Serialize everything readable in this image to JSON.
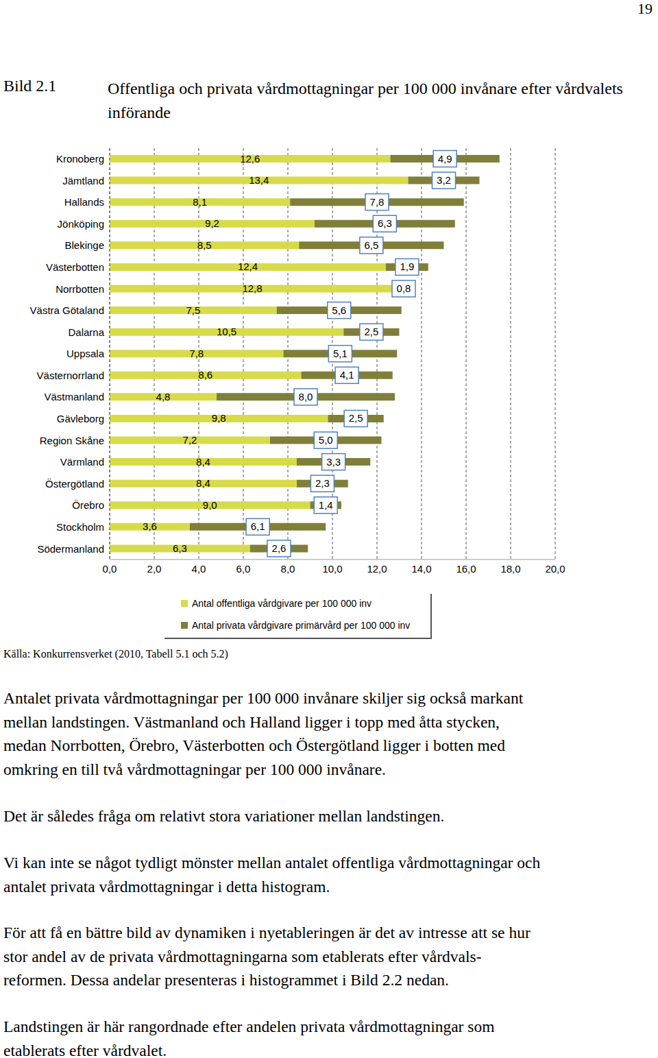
{
  "page_number": "19",
  "figure_label": "Bild 2.1",
  "chart_data": {
    "type": "bar",
    "orientation": "horizontal",
    "stacked": true,
    "title": "Offentliga och privata vårdmottagningar per 100 000 invånare efter vårdvalets införande",
    "categories": [
      "Kronoberg",
      "Jämtland",
      "Hallands",
      "Jönköping",
      "Blekinge",
      "Västerbotten",
      "Norrbotten",
      "Västra Götaland",
      "Dalarna",
      "Uppsala",
      "Västernorrland",
      "Västmanland",
      "Gävleborg",
      "Region Skåne",
      "Värmland",
      "Östergötland",
      "Örebro",
      "Stockholm",
      "Södermanland"
    ],
    "series": [
      {
        "name": "Antal offentliga vårdgivare per 100 000 inv",
        "color": "#d7db4a",
        "values": [
          12.6,
          13.4,
          8.1,
          9.2,
          8.5,
          12.4,
          12.8,
          7.5,
          10.5,
          7.8,
          8.6,
          4.8,
          9.8,
          7.2,
          8.4,
          8.4,
          9.0,
          3.6,
          6.3
        ],
        "value_labels": [
          "12,6",
          "13,4",
          "8,1",
          "9,2",
          "8,5",
          "12,4",
          "12,8",
          "7,5",
          "10,5",
          "7,8",
          "8,6",
          "4,8",
          "9,8",
          "7,2",
          "8,4",
          "8,4",
          "9,0",
          "3,6",
          "6,3"
        ]
      },
      {
        "name": "Antal privata vårdgivare primärvård per 100 000 inv",
        "color": "#7f7f3a",
        "values": [
          4.9,
          3.2,
          7.8,
          6.3,
          6.5,
          1.9,
          0.8,
          5.6,
          2.5,
          5.1,
          4.1,
          8.0,
          2.5,
          5.0,
          3.3,
          2.3,
          1.4,
          6.1,
          2.6
        ],
        "value_labels": [
          "4,9",
          "3,2",
          "7,8",
          "6,3",
          "6,5",
          "1,9",
          "0,8",
          "5,6",
          "2,5",
          "5,1",
          "4,1",
          "8,0",
          "2,5",
          "5,0",
          "3,3",
          "2,3",
          "1,4",
          "6,1",
          "2,6"
        ]
      }
    ],
    "xlim": [
      0,
      20
    ],
    "xticks": [
      {
        "value": 0,
        "label": "0,0"
      },
      {
        "value": 2,
        "label": "2,0"
      },
      {
        "value": 4,
        "label": "4,0"
      },
      {
        "value": 6,
        "label": "6,0"
      },
      {
        "value": 8,
        "label": "8,0"
      },
      {
        "value": 10,
        "label": "10,0"
      },
      {
        "value": 12,
        "label": "12,0"
      },
      {
        "value": 14,
        "label": "14,0"
      },
      {
        "value": 16,
        "label": "16,0"
      },
      {
        "value": 18,
        "label": "18,0"
      },
      {
        "value": 20,
        "label": "20,0"
      }
    ],
    "grid": true,
    "data_labels": true,
    "legend": "bottom"
  },
  "source": "Källa: Konkurrensverket (2010, Tabell 5.1 och 5.2)",
  "paragraphs": [
    [
      "Antalet privata vårdmottagningar per 100 000 invånare skiljer sig också markant",
      "mellan landstingen. Västmanland och Halland ligger i topp med åtta stycken,",
      "medan Norrbotten, Örebro, Västerbotten och Östergötland ligger i botten med",
      "omkring en till två vårdmottagningar per 100 000 invånare."
    ],
    [
      "Det är således fråga om relativt stora variationer mellan landstingen."
    ],
    [
      "Vi kan inte se något tydligt mönster mellan antalet offentliga vårdmottagningar och",
      "antalet privata vårdmottagningar i detta histogram."
    ],
    [
      "För att få en bättre bild av dynamiken i nyetableringen är det av intresse att se hur",
      "stor andel av de privata vårdmottagningarna som etablerats efter vårdvals-",
      "reformen. Dessa andelar presenteras i histogrammet i Bild 2.2 nedan."
    ],
    [
      "Landstingen är här rangordnade efter andelen privata vårdmottagningar som",
      "etablerats efter vårdvalet."
    ]
  ]
}
